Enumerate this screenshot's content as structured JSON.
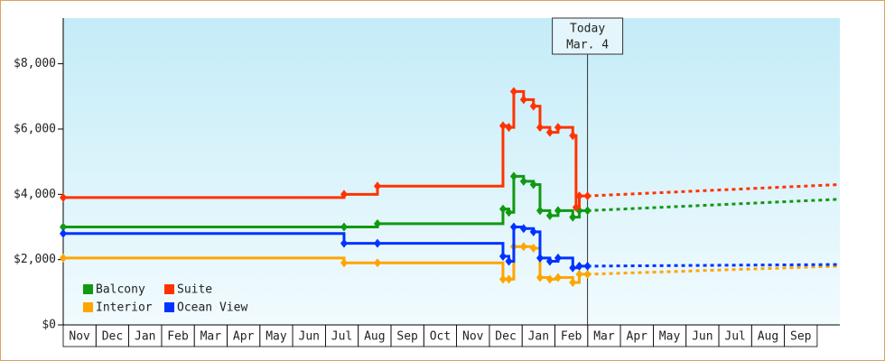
{
  "chart_data": {
    "type": "line",
    "step": true,
    "categories": [
      "Nov",
      "Dec",
      "Jan",
      "Feb",
      "Mar",
      "Apr",
      "May",
      "Jun",
      "Jul",
      "Aug",
      "Sep",
      "Oct",
      "Nov",
      "Dec",
      "Jan",
      "Feb",
      "Mar",
      "Apr",
      "May",
      "Jun",
      "Jul",
      "Aug",
      "Sep"
    ],
    "xlim": [
      0,
      23.7
    ],
    "ylim": [
      0,
      9400
    ],
    "yticks": [
      {
        "value": 0,
        "label": "$0"
      },
      {
        "value": 2000,
        "label": "$2,000"
      },
      {
        "value": 4000,
        "label": "$4,000"
      },
      {
        "value": 6000,
        "label": "$6,000"
      },
      {
        "value": 8000,
        "label": "$8,000"
      }
    ],
    "annotation": {
      "x": 16,
      "lines": [
        "Today",
        "Mar. 4"
      ]
    },
    "legend": "lower-left",
    "series": [
      {
        "name": "Balcony",
        "color": "#119911",
        "x": [
          0,
          8.57,
          9.59,
          13.42,
          13.6,
          13.75,
          14.05,
          14.35,
          14.55,
          14.85,
          15.1,
          15.55,
          15.75,
          16.0
        ],
        "values": [
          3000,
          3000,
          3100,
          3550,
          3450,
          4550,
          4400,
          4300,
          3500,
          3350,
          3500,
          3300,
          3500,
          3500
        ],
        "forecast": {
          "x": [
            16.0,
            23.7
          ],
          "values": [
            3500,
            3850
          ]
        }
      },
      {
        "name": "Suite",
        "color": "#ff3300",
        "x": [
          0,
          8.57,
          9.59,
          13.42,
          13.6,
          13.75,
          14.05,
          14.35,
          14.55,
          14.85,
          15.1,
          15.55,
          15.65,
          15.75,
          16.0
        ],
        "values": [
          3900,
          4000,
          4250,
          6100,
          6050,
          7150,
          6900,
          6700,
          6050,
          5900,
          6050,
          5800,
          3600,
          3950,
          3950
        ],
        "forecast": {
          "x": [
            16.0,
            23.7
          ],
          "values": [
            3950,
            4300
          ]
        }
      },
      {
        "name": "Interior",
        "color": "#ffa500",
        "x": [
          0,
          8.57,
          9.59,
          13.42,
          13.6,
          13.75,
          14.05,
          14.35,
          14.55,
          14.85,
          15.1,
          15.55,
          15.75,
          16.0
        ],
        "values": [
          2050,
          1900,
          1900,
          1400,
          1400,
          2400,
          2400,
          2350,
          1450,
          1400,
          1450,
          1300,
          1550,
          1550
        ],
        "forecast": {
          "x": [
            16.0,
            23.7
          ],
          "values": [
            1550,
            1800
          ]
        }
      },
      {
        "name": "Ocean View",
        "color": "#0033ff",
        "x": [
          0,
          8.57,
          9.59,
          13.42,
          13.6,
          13.75,
          14.05,
          14.35,
          14.55,
          14.85,
          15.1,
          15.55,
          15.75,
          16.0
        ],
        "values": [
          2800,
          2500,
          2500,
          2100,
          1950,
          3000,
          2950,
          2850,
          2050,
          1950,
          2050,
          1750,
          1800,
          1800
        ],
        "forecast": {
          "x": [
            16.0,
            23.7
          ],
          "values": [
            1800,
            1850
          ]
        }
      }
    ]
  }
}
